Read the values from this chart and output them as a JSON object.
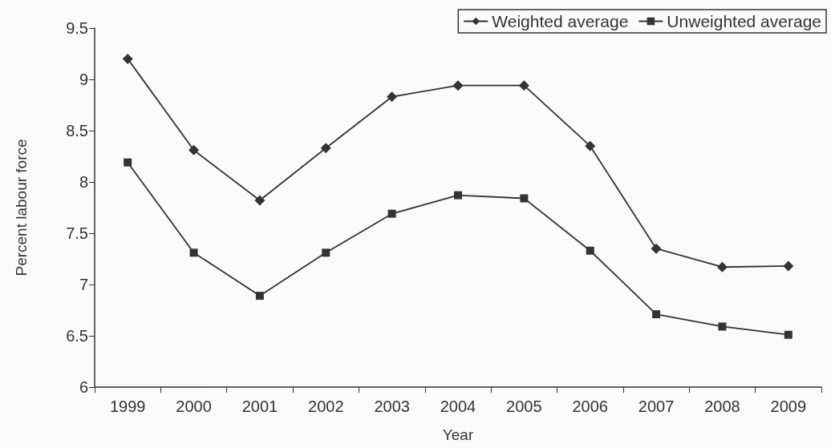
{
  "chart_data": {
    "type": "line",
    "xlabel": "Year",
    "ylabel": "Percent labour force",
    "categories": [
      "1999",
      "2000",
      "2001",
      "2002",
      "2003",
      "2004",
      "2005",
      "2006",
      "2007",
      "2008",
      "2009"
    ],
    "series": [
      {
        "name": "Weighted average",
        "color": "#333333",
        "marker": "diamond",
        "values": [
          9.2,
          8.31,
          7.82,
          8.33,
          8.83,
          8.94,
          8.94,
          8.35,
          7.35,
          7.17,
          7.18
        ]
      },
      {
        "name": "Unweighted average",
        "color": "#333333",
        "marker": "square",
        "values": [
          8.19,
          7.31,
          6.89,
          7.31,
          7.69,
          7.87,
          7.84,
          7.33,
          6.71,
          6.59,
          6.51
        ]
      }
    ],
    "ylim": [
      6,
      9.5
    ],
    "yticks": [
      6,
      6.5,
      7,
      7.5,
      8,
      8.5,
      9,
      9.5
    ],
    "grid": false,
    "legend": "top right",
    "line_style": "solid"
  }
}
